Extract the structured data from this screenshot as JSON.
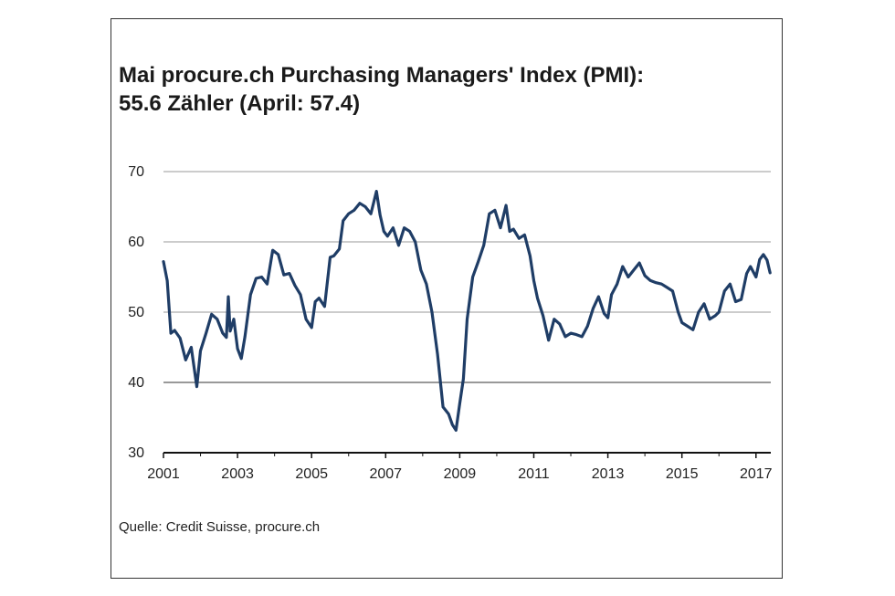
{
  "chart_data": {
    "type": "line",
    "title": "Mai procure.ch Purchasing Managers' Index (PMI):",
    "subtitle": "55.6 Zähler (April: 57.4)",
    "source": "Quelle: Credit Suisse, procure.ch",
    "xlabel": "",
    "ylabel": "",
    "ylim": [
      30,
      70
    ],
    "yticks": [
      30,
      40,
      50,
      60,
      70
    ],
    "xlim": [
      2001.0,
      2017.4
    ],
    "xticks": [
      2001,
      2003,
      2005,
      2007,
      2009,
      2011,
      2013,
      2015,
      2017
    ],
    "grid": true,
    "legend": "none",
    "line_color": "#1f3d66",
    "series": [
      {
        "x": [
          2001.0,
          2001.1,
          2001.2,
          2001.3,
          2001.45,
          2001.6,
          2001.75,
          2001.9,
          2002.0,
          2002.15,
          2002.3,
          2002.45,
          2002.6,
          2002.7,
          2002.75,
          2002.8,
          2002.9,
          2003.0,
          2003.1,
          2003.2,
          2003.35,
          2003.5,
          2003.65,
          2003.8,
          2003.95,
          2004.1,
          2004.25,
          2004.4,
          2004.55,
          2004.7,
          2004.85,
          2005.0,
          2005.1,
          2005.2,
          2005.35,
          2005.5,
          2005.6,
          2005.75,
          2005.85,
          2006.0,
          2006.15,
          2006.3,
          2006.45,
          2006.6,
          2006.75,
          2006.85,
          2006.95,
          2007.05,
          2007.2,
          2007.35,
          2007.5,
          2007.65,
          2007.8,
          2007.95,
          2008.1,
          2008.25,
          2008.4,
          2008.55,
          2008.7,
          2008.8,
          2008.9,
          2009.0,
          2009.1,
          2009.2,
          2009.35,
          2009.5,
          2009.65,
          2009.8,
          2009.95,
          2010.1,
          2010.25,
          2010.35,
          2010.45,
          2010.6,
          2010.75,
          2010.9,
          2011.0,
          2011.1,
          2011.25,
          2011.4,
          2011.55,
          2011.7,
          2011.85,
          2012.0,
          2012.15,
          2012.3,
          2012.45,
          2012.6,
          2012.75,
          2012.9,
          2013.0,
          2013.1,
          2013.25,
          2013.4,
          2013.55,
          2013.7,
          2013.85,
          2014.0,
          2014.15,
          2014.3,
          2014.45,
          2014.6,
          2014.75,
          2014.9,
          2015.0,
          2015.15,
          2015.3,
          2015.45,
          2015.6,
          2015.75,
          2015.9,
          2016.0,
          2016.15,
          2016.3,
          2016.45,
          2016.6,
          2016.75,
          2016.85,
          2017.0,
          2017.1,
          2017.2,
          2017.3,
          2017.38
        ],
        "values": [
          57.2,
          54.5,
          47.0,
          47.4,
          46.3,
          43.2,
          45.0,
          39.4,
          44.5,
          47.0,
          49.7,
          49.0,
          47.0,
          46.4,
          52.2,
          47.3,
          49.0,
          44.8,
          43.4,
          46.5,
          52.5,
          54.8,
          55.0,
          54.0,
          58.8,
          58.2,
          55.3,
          55.5,
          53.8,
          52.5,
          49.0,
          47.8,
          51.5,
          52.0,
          50.8,
          57.8,
          58.0,
          59.0,
          63.0,
          64.0,
          64.5,
          65.5,
          65.0,
          64.0,
          67.2,
          63.8,
          61.5,
          60.8,
          62.0,
          59.5,
          62.0,
          61.5,
          60.0,
          56.0,
          54.0,
          50.0,
          44.0,
          36.5,
          35.5,
          34.0,
          33.2,
          37.0,
          40.5,
          49.0,
          55.0,
          57.2,
          59.5,
          64.0,
          64.5,
          62.0,
          65.2,
          61.5,
          61.8,
          60.5,
          61.0,
          58.0,
          54.5,
          52.0,
          49.5,
          46.0,
          49.0,
          48.3,
          46.5,
          47.0,
          46.8,
          46.5,
          48.0,
          50.5,
          52.2,
          49.8,
          49.2,
          52.5,
          54.0,
          56.5,
          55.0,
          56.0,
          57.0,
          55.2,
          54.5,
          54.2,
          54.0,
          53.5,
          53.0,
          50.0,
          48.5,
          48.0,
          47.5,
          50.0,
          51.2,
          49.0,
          49.5,
          50.0,
          53.0,
          54.0,
          51.5,
          51.8,
          55.5,
          56.5,
          55.0,
          57.5,
          58.2,
          57.4,
          55.6
        ]
      }
    ]
  }
}
